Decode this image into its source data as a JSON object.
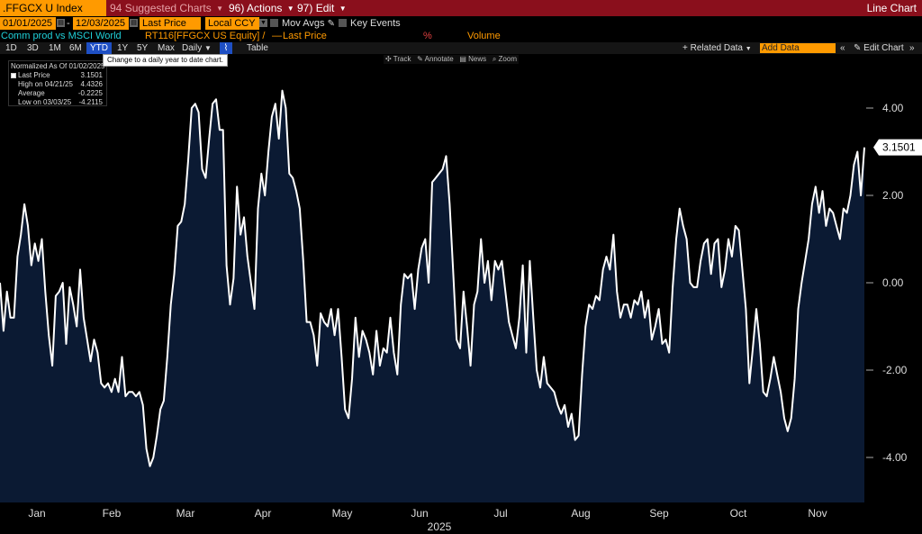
{
  "header": {
    "ticker": ".FFGCX U Index",
    "suggested_charts": "Suggested Charts",
    "suggested_num": "94",
    "actions": "Actions",
    "actions_num": "96)",
    "edit": "Edit",
    "edit_num": "97)",
    "chart_type": "Line Chart"
  },
  "fields": {
    "start_date": "01/01/2025",
    "end_date": "12/03/2025",
    "price_field": "Last Price",
    "currency": "Local CCY",
    "mov_avgs": "Mov Avgs",
    "key_events": "Key Events"
  },
  "legend_row": {
    "comparison": "Comm prod vs MSCI World",
    "series_ref": "RT116[FFGCX US Equity] /",
    "last_price": "Last Price",
    "percent": "%",
    "volume": "Volume"
  },
  "toolbar": {
    "ranges": [
      "1D",
      "3D",
      "1M",
      "6M",
      "YTD",
      "1Y",
      "5Y",
      "Max"
    ],
    "active_range": "YTD",
    "frequency": "Daily",
    "table": "Table",
    "related_data": "Related Data",
    "add_data_placeholder": "Add Data",
    "edit_chart": "Edit Chart",
    "tooltip": "Change to a daily year to date chart."
  },
  "chart_controls": {
    "track": "Track",
    "annotate": "Annotate",
    "news": "News",
    "zoom": "Zoom"
  },
  "stats": {
    "normalized": "Normalized As Of 01/02/2025",
    "rows": [
      {
        "label": "Last Price",
        "value": "3.1501"
      },
      {
        "label": "High on 04/21/25",
        "value": "4.4326"
      },
      {
        "label": "Average",
        "value": "-0.2225"
      },
      {
        "label": "Low on 03/03/25",
        "value": "-4.2115"
      }
    ]
  },
  "chart_data": {
    "type": "area",
    "ylim": [
      -5.0,
      5.0
    ],
    "y_ticks": [
      4.0,
      2.0,
      0.0,
      -2.0,
      -4.0
    ],
    "y_tick_labels": [
      "4.00",
      "2.00",
      "0.00",
      "-2.00",
      "-4.00"
    ],
    "x_tick_labels": [
      "Jan",
      "Feb",
      "Mar",
      "Apr",
      "May",
      "Jun",
      "Jul",
      "Aug",
      "Sep",
      "Oct",
      "Nov"
    ],
    "x_year_label": "2025",
    "last_value_label": "3.1501",
    "colors": {
      "line": "#ffffff",
      "fill": "#0b1a33",
      "axis_text": "#dddddd",
      "badge_bg": "#ffffff"
    },
    "series": [
      {
        "values": [
          0.0,
          -1.1,
          -0.2,
          -0.8,
          -0.8,
          0.6,
          1.1,
          1.8,
          1.3,
          0.4,
          0.9,
          0.5,
          1.0,
          -0.2,
          -1.2,
          -1.9,
          -0.3,
          -0.2,
          0.0,
          -1.4,
          -0.1,
          -0.5,
          -1.0,
          0.3,
          -0.8,
          -1.3,
          -1.8,
          -1.3,
          -1.6,
          -2.3,
          -2.4,
          -2.3,
          -2.5,
          -2.2,
          -2.5,
          -1.7,
          -2.6,
          -2.5,
          -2.5,
          -2.6,
          -2.5,
          -2.8,
          -3.8,
          -4.2,
          -4.0,
          -3.5,
          -2.9,
          -2.7,
          -1.7,
          -0.5,
          0.2,
          1.3,
          1.4,
          1.8,
          2.8,
          4.0,
          4.1,
          3.9,
          2.6,
          2.4,
          3.3,
          4.1,
          4.2,
          3.5,
          3.5,
          0.4,
          -0.5,
          0.1,
          2.2,
          1.1,
          1.5,
          0.6,
          0.0,
          -0.6,
          1.7,
          2.5,
          2.0,
          3.0,
          3.8,
          4.1,
          3.3,
          4.4,
          4.0,
          2.5,
          2.4,
          2.1,
          1.7,
          0.5,
          -0.9,
          -0.9,
          -1.2,
          -1.9,
          -0.7,
          -0.9,
          -1.0,
          -0.6,
          -1.2,
          -0.6,
          -1.7,
          -2.9,
          -3.1,
          -2.2,
          -0.8,
          -1.7,
          -1.1,
          -1.3,
          -1.6,
          -2.1,
          -1.1,
          -1.9,
          -1.5,
          -1.6,
          -0.8,
          -1.6,
          -2.1,
          -0.5,
          0.2,
          0.1,
          0.2,
          -0.6,
          0.3,
          0.8,
          1.0,
          0.0,
          2.3,
          2.4,
          2.5,
          2.6,
          2.9,
          1.8,
          0.3,
          -1.3,
          -1.5,
          -0.2,
          -1.0,
          -1.9,
          -0.5,
          -0.2,
          1.0,
          0.0,
          0.5,
          -0.4,
          0.5,
          0.3,
          0.5,
          -0.2,
          -0.9,
          -1.2,
          -1.5,
          -0.8,
          0.4,
          -1.6,
          0.5,
          -0.8,
          -2.0,
          -2.4,
          -1.7,
          -2.3,
          -2.4,
          -2.5,
          -2.8,
          -3.0,
          -2.8,
          -3.3,
          -3.0,
          -3.6,
          -3.5,
          -2.1,
          -1.0,
          -0.5,
          -0.6,
          -0.3,
          -0.4,
          0.3,
          0.6,
          0.3,
          1.1,
          -0.2,
          -0.8,
          -0.5,
          -0.5,
          -0.8,
          -0.4,
          -0.5,
          -0.2,
          -0.8,
          -0.4,
          -1.3,
          -1.0,
          -0.6,
          -1.4,
          -1.3,
          -1.6,
          -0.1,
          1.0,
          1.7,
          1.3,
          1.0,
          0.0,
          -0.1,
          -0.1,
          0.5,
          0.9,
          1.0,
          0.2,
          0.9,
          1.0,
          -0.1,
          0.3,
          1.0,
          0.6,
          1.3,
          1.2,
          0.3,
          -0.6,
          -2.3,
          -1.5,
          -0.6,
          -1.4,
          -2.5,
          -2.6,
          -2.2,
          -1.7,
          -2.1,
          -2.5,
          -3.1,
          -3.4,
          -3.1,
          -2.2,
          -0.6,
          0.0,
          0.5,
          1.0,
          1.8,
          2.2,
          1.6,
          2.1,
          1.3,
          1.7,
          1.6,
          1.3,
          1.0,
          1.7,
          1.6,
          2.0,
          2.7,
          3.0,
          2.0,
          3.1
        ]
      }
    ]
  }
}
